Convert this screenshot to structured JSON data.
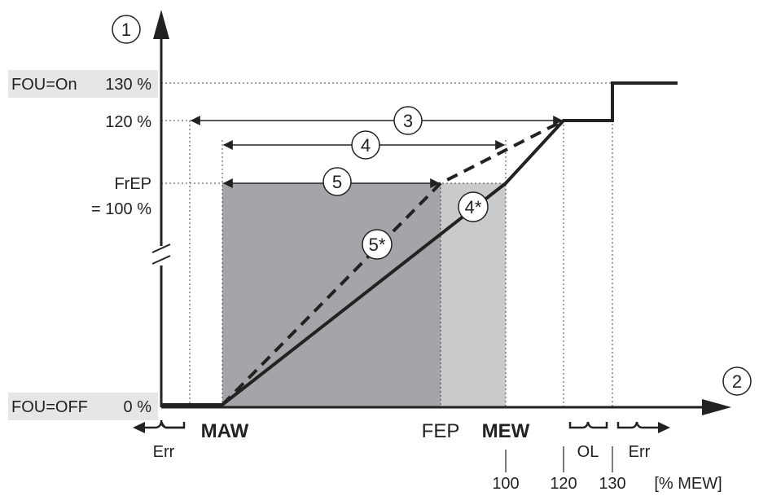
{
  "labels": {
    "fou_on": "FOU=On",
    "fou_off": "FOU=OFF",
    "y_130": "130 %",
    "y_120": "120 %",
    "y_frep": "FrEP",
    "y_100": "= 100 %",
    "y_0": "0 %",
    "maw": "MAW",
    "fep": "FEP",
    "mew": "MEW",
    "x_100": "100",
    "x_120": "120",
    "x_130": "130",
    "x_unit": "[% MEW]",
    "err_left": "Err",
    "err_right": "Err",
    "ol": "OL"
  },
  "markers": {
    "m1": "1",
    "m2": "2",
    "m3": "3",
    "m4": "4",
    "m5": "5",
    "m4s": "4*",
    "m5s": "5*"
  },
  "colors": {
    "line": "#222222",
    "region_dark": "#a4a5a8",
    "region_light": "#c9cacb",
    "label_bg": "#e6e6e6"
  }
}
